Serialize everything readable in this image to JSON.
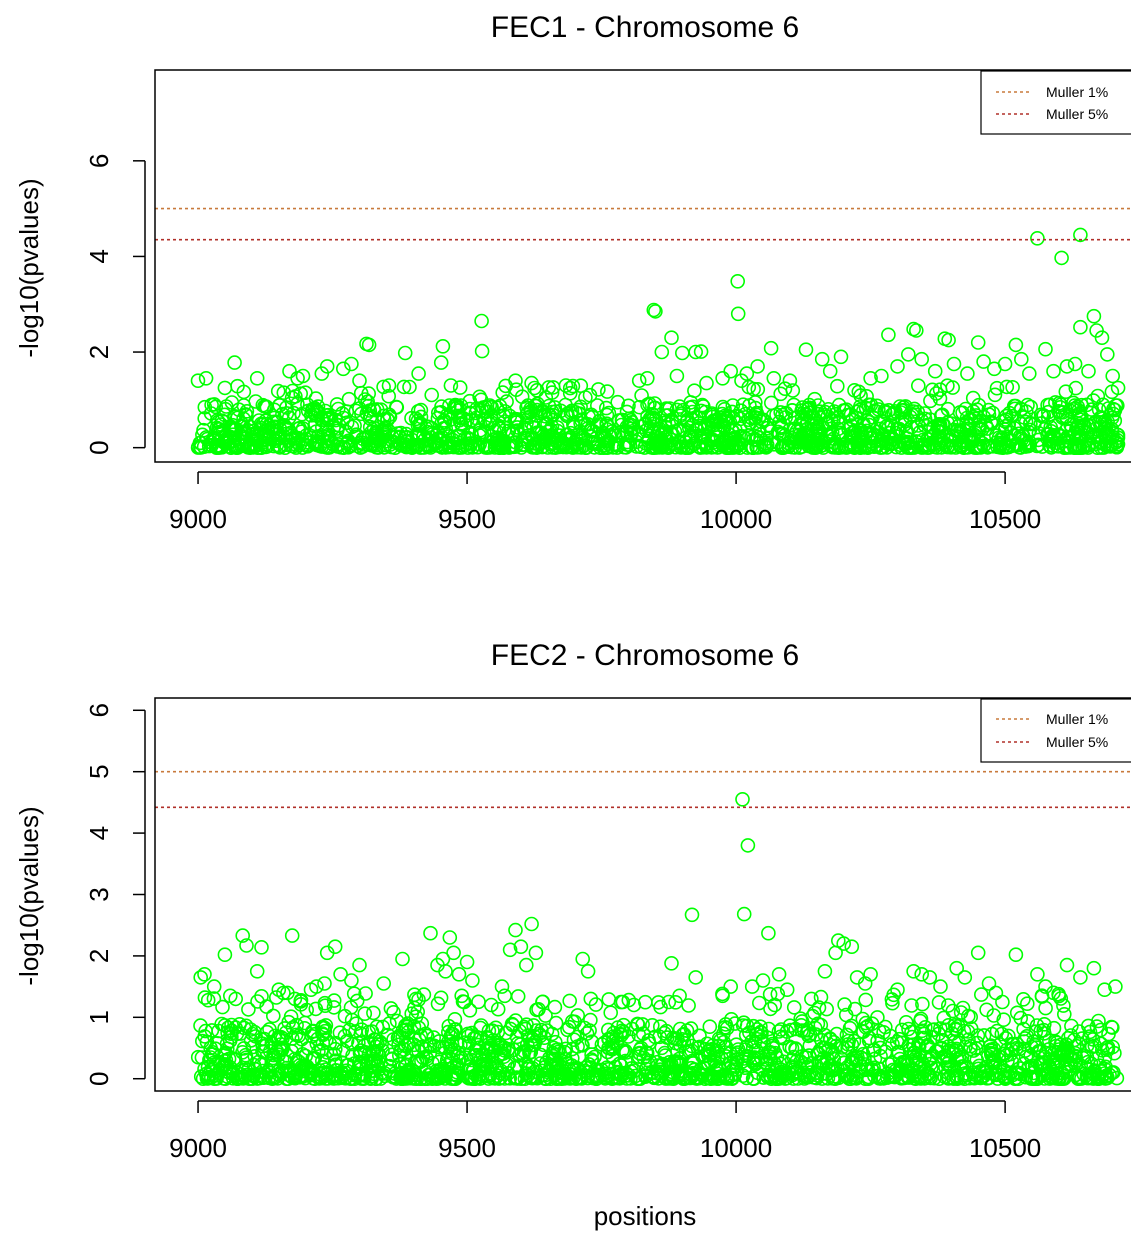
{
  "xlabel": "positions",
  "colors": {
    "points": "#00ff00",
    "muller_1pct": "#c87a3c",
    "muller_5pct": "#b0302a",
    "axis": "#000000"
  },
  "chart_data": [
    {
      "type": "scatter",
      "title": "FEC1 - Chromosome 6",
      "xlabel": "",
      "ylabel": "-log10(pvalues)",
      "xlim": [
        8920,
        10760
      ],
      "ylim": [
        -0.3,
        7.9
      ],
      "xticks": [
        "9000",
        "9500",
        "10000",
        "10500"
      ],
      "yticks": [
        "0",
        "2",
        "4",
        "6"
      ],
      "point_style": "open-circle",
      "reference_lines": [
        {
          "label": "Muller 1%",
          "y": 5.0,
          "style": "dotted"
        },
        {
          "label": "Muller 5%",
          "y": 4.35,
          "style": "dotted"
        }
      ],
      "legend": {
        "position": "top-right",
        "entries": [
          "Muller 1%",
          "Muller 5%"
        ]
      },
      "x_range": [
        9000,
        10710
      ],
      "background": {
        "n": 1500,
        "ymax": 0.9,
        "seed": 11
      },
      "scattered_floor": 0.2,
      "peaks": [
        {
          "x": 10560,
          "y": 4.38
        },
        {
          "x": 10640,
          "y": 4.45
        },
        {
          "x": 10605,
          "y": 3.97
        },
        {
          "x": 10003,
          "y": 3.48
        },
        {
          "x": 10004,
          "y": 2.8
        },
        {
          "x": 9847,
          "y": 2.88
        },
        {
          "x": 9850,
          "y": 2.85
        },
        {
          "x": 9527,
          "y": 2.65
        },
        {
          "x": 9528,
          "y": 2.02
        },
        {
          "x": 10665,
          "y": 2.75
        },
        {
          "x": 10640,
          "y": 2.52
        },
        {
          "x": 10670,
          "y": 2.45
        },
        {
          "x": 10330,
          "y": 2.48
        },
        {
          "x": 10335,
          "y": 2.45
        },
        {
          "x": 10283,
          "y": 2.36
        },
        {
          "x": 10388,
          "y": 2.28
        },
        {
          "x": 10395,
          "y": 2.25
        },
        {
          "x": 10450,
          "y": 2.2
        },
        {
          "x": 10520,
          "y": 2.15
        },
        {
          "x": 10575,
          "y": 2.06
        },
        {
          "x": 9313,
          "y": 2.17
        },
        {
          "x": 9318,
          "y": 2.15
        },
        {
          "x": 9455,
          "y": 2.12
        },
        {
          "x": 9385,
          "y": 1.98
        },
        {
          "x": 9880,
          "y": 2.3
        },
        {
          "x": 9862,
          "y": 2.0
        },
        {
          "x": 9900,
          "y": 1.98
        },
        {
          "x": 9925,
          "y": 2.0
        },
        {
          "x": 9935,
          "y": 2.01
        },
        {
          "x": 10065,
          "y": 2.08
        },
        {
          "x": 10130,
          "y": 2.05
        },
        {
          "x": 10195,
          "y": 1.9
        },
        {
          "x": 9068,
          "y": 1.78
        },
        {
          "x": 9452,
          "y": 1.78
        },
        {
          "x": 10680,
          "y": 2.3
        }
      ],
      "scattered": [
        {
          "x": 9000,
          "y": 1.4
        },
        {
          "x": 9015,
          "y": 1.45
        },
        {
          "x": 9050,
          "y": 1.25
        },
        {
          "x": 9110,
          "y": 1.45
        },
        {
          "x": 9170,
          "y": 1.6
        },
        {
          "x": 9185,
          "y": 1.45
        },
        {
          "x": 9195,
          "y": 1.5
        },
        {
          "x": 9230,
          "y": 1.55
        },
        {
          "x": 9240,
          "y": 1.7
        },
        {
          "x": 9270,
          "y": 1.65
        },
        {
          "x": 9285,
          "y": 1.75
        },
        {
          "x": 9300,
          "y": 1.4
        },
        {
          "x": 9355,
          "y": 1.3
        },
        {
          "x": 9410,
          "y": 1.55
        },
        {
          "x": 9470,
          "y": 1.3
        },
        {
          "x": 9590,
          "y": 1.4
        },
        {
          "x": 9620,
          "y": 1.35
        },
        {
          "x": 9630,
          "y": 1.2
        },
        {
          "x": 9720,
          "y": 1.05
        },
        {
          "x": 9780,
          "y": 0.95
        },
        {
          "x": 9820,
          "y": 1.4
        },
        {
          "x": 9835,
          "y": 1.45
        },
        {
          "x": 9890,
          "y": 1.5
        },
        {
          "x": 9945,
          "y": 1.35
        },
        {
          "x": 9975,
          "y": 1.45
        },
        {
          "x": 9990,
          "y": 1.6
        },
        {
          "x": 10010,
          "y": 1.4
        },
        {
          "x": 10020,
          "y": 1.55
        },
        {
          "x": 10040,
          "y": 1.7
        },
        {
          "x": 10070,
          "y": 1.45
        },
        {
          "x": 10100,
          "y": 1.4
        },
        {
          "x": 10160,
          "y": 1.85
        },
        {
          "x": 10175,
          "y": 1.6
        },
        {
          "x": 10220,
          "y": 1.2
        },
        {
          "x": 10250,
          "y": 1.45
        },
        {
          "x": 10270,
          "y": 1.5
        },
        {
          "x": 10300,
          "y": 1.7
        },
        {
          "x": 10320,
          "y": 1.95
        },
        {
          "x": 10345,
          "y": 1.85
        },
        {
          "x": 10370,
          "y": 1.6
        },
        {
          "x": 10405,
          "y": 1.75
        },
        {
          "x": 10430,
          "y": 1.55
        },
        {
          "x": 10460,
          "y": 1.8
        },
        {
          "x": 10480,
          "y": 1.65
        },
        {
          "x": 10500,
          "y": 1.75
        },
        {
          "x": 10530,
          "y": 1.85
        },
        {
          "x": 10545,
          "y": 1.55
        },
        {
          "x": 10590,
          "y": 1.6
        },
        {
          "x": 10615,
          "y": 1.7
        },
        {
          "x": 10630,
          "y": 1.75
        },
        {
          "x": 10655,
          "y": 1.6
        },
        {
          "x": 10690,
          "y": 1.95
        },
        {
          "x": 10700,
          "y": 1.5
        },
        {
          "x": 10710,
          "y": 1.25
        }
      ]
    },
    {
      "type": "scatter",
      "title": "FEC2 - Chromosome 6",
      "xlabel": "positions",
      "ylabel": "-log10(pvalues)",
      "xlim": [
        8920,
        10760
      ],
      "ylim": [
        -0.2,
        6.2
      ],
      "xticks": [
        "9000",
        "9500",
        "10000",
        "10500"
      ],
      "yticks": [
        "0",
        "1",
        "2",
        "3",
        "4",
        "5",
        "6"
      ],
      "point_style": "open-circle",
      "reference_lines": [
        {
          "label": "Muller 1%",
          "y": 5.0,
          "style": "dotted"
        },
        {
          "label": "Muller 5%",
          "y": 4.42,
          "style": "dotted"
        }
      ],
      "legend": {
        "position": "top-right",
        "entries": [
          "Muller 1%",
          "Muller 5%"
        ]
      },
      "x_range": [
        9000,
        10710
      ],
      "background": {
        "n": 1600,
        "ymax": 0.9,
        "seed": 29
      },
      "scattered_floor": 0.3,
      "peaks": [
        {
          "x": 10012,
          "y": 4.55
        },
        {
          "x": 10022,
          "y": 3.8
        },
        {
          "x": 9918,
          "y": 2.67
        },
        {
          "x": 10015,
          "y": 2.68
        },
        {
          "x": 9620,
          "y": 2.52
        },
        {
          "x": 9590,
          "y": 2.42
        },
        {
          "x": 9600,
          "y": 2.15
        },
        {
          "x": 9580,
          "y": 2.1
        },
        {
          "x": 9432,
          "y": 2.37
        },
        {
          "x": 9083,
          "y": 2.33
        },
        {
          "x": 9175,
          "y": 2.33
        },
        {
          "x": 9090,
          "y": 2.17
        },
        {
          "x": 9118,
          "y": 2.14
        },
        {
          "x": 9255,
          "y": 2.15
        },
        {
          "x": 9240,
          "y": 2.05
        },
        {
          "x": 9468,
          "y": 2.3
        },
        {
          "x": 10060,
          "y": 2.37
        },
        {
          "x": 10190,
          "y": 2.25
        },
        {
          "x": 10200,
          "y": 2.2
        },
        {
          "x": 10215,
          "y": 2.15
        },
        {
          "x": 10185,
          "y": 2.05
        },
        {
          "x": 10450,
          "y": 2.05
        },
        {
          "x": 10520,
          "y": 2.02
        },
        {
          "x": 9050,
          "y": 2.02
        },
        {
          "x": 9628,
          "y": 2.05
        },
        {
          "x": 9300,
          "y": 1.85
        },
        {
          "x": 9880,
          "y": 1.88
        }
      ],
      "scattered": [
        {
          "x": 9005,
          "y": 1.65
        },
        {
          "x": 9012,
          "y": 1.7
        },
        {
          "x": 9030,
          "y": 1.5
        },
        {
          "x": 9060,
          "y": 1.35
        },
        {
          "x": 9070,
          "y": 1.3
        },
        {
          "x": 9110,
          "y": 1.75
        },
        {
          "x": 9150,
          "y": 1.45
        },
        {
          "x": 9180,
          "y": 1.3
        },
        {
          "x": 9210,
          "y": 1.45
        },
        {
          "x": 9220,
          "y": 1.5
        },
        {
          "x": 9235,
          "y": 1.55
        },
        {
          "x": 9265,
          "y": 1.7
        },
        {
          "x": 9285,
          "y": 1.6
        },
        {
          "x": 9345,
          "y": 1.55
        },
        {
          "x": 9380,
          "y": 1.95
        },
        {
          "x": 9405,
          "y": 1.3
        },
        {
          "x": 9445,
          "y": 1.85
        },
        {
          "x": 9455,
          "y": 1.95
        },
        {
          "x": 9460,
          "y": 1.75
        },
        {
          "x": 9475,
          "y": 2.05
        },
        {
          "x": 9485,
          "y": 1.7
        },
        {
          "x": 9500,
          "y": 1.9
        },
        {
          "x": 9510,
          "y": 1.6
        },
        {
          "x": 9545,
          "y": 1.2
        },
        {
          "x": 9565,
          "y": 1.5
        },
        {
          "x": 9570,
          "y": 1.35
        },
        {
          "x": 9610,
          "y": 1.85
        },
        {
          "x": 9640,
          "y": 1.25
        },
        {
          "x": 9715,
          "y": 1.95
        },
        {
          "x": 9725,
          "y": 1.75
        },
        {
          "x": 9730,
          "y": 1.3
        },
        {
          "x": 9810,
          "y": 1.2
        },
        {
          "x": 9875,
          "y": 1.25
        },
        {
          "x": 9895,
          "y": 1.35
        },
        {
          "x": 9925,
          "y": 1.65
        },
        {
          "x": 9975,
          "y": 1.35
        },
        {
          "x": 9990,
          "y": 1.5
        },
        {
          "x": 10030,
          "y": 1.5
        },
        {
          "x": 10050,
          "y": 1.6
        },
        {
          "x": 10080,
          "y": 1.7
        },
        {
          "x": 10095,
          "y": 1.45
        },
        {
          "x": 10140,
          "y": 1.3
        },
        {
          "x": 10165,
          "y": 1.75
        },
        {
          "x": 10225,
          "y": 1.65
        },
        {
          "x": 10240,
          "y": 1.55
        },
        {
          "x": 10250,
          "y": 1.7
        },
        {
          "x": 10300,
          "y": 1.45
        },
        {
          "x": 10330,
          "y": 1.75
        },
        {
          "x": 10345,
          "y": 1.7
        },
        {
          "x": 10360,
          "y": 1.65
        },
        {
          "x": 10380,
          "y": 1.5
        },
        {
          "x": 10410,
          "y": 1.8
        },
        {
          "x": 10425,
          "y": 1.65
        },
        {
          "x": 10470,
          "y": 1.55
        },
        {
          "x": 10495,
          "y": 1.25
        },
        {
          "x": 10560,
          "y": 1.7
        },
        {
          "x": 10575,
          "y": 1.5
        },
        {
          "x": 10590,
          "y": 1.4
        },
        {
          "x": 10615,
          "y": 1.85
        },
        {
          "x": 10640,
          "y": 1.65
        },
        {
          "x": 10665,
          "y": 1.8
        },
        {
          "x": 10685,
          "y": 1.45
        },
        {
          "x": 10705,
          "y": 1.5
        }
      ]
    }
  ]
}
